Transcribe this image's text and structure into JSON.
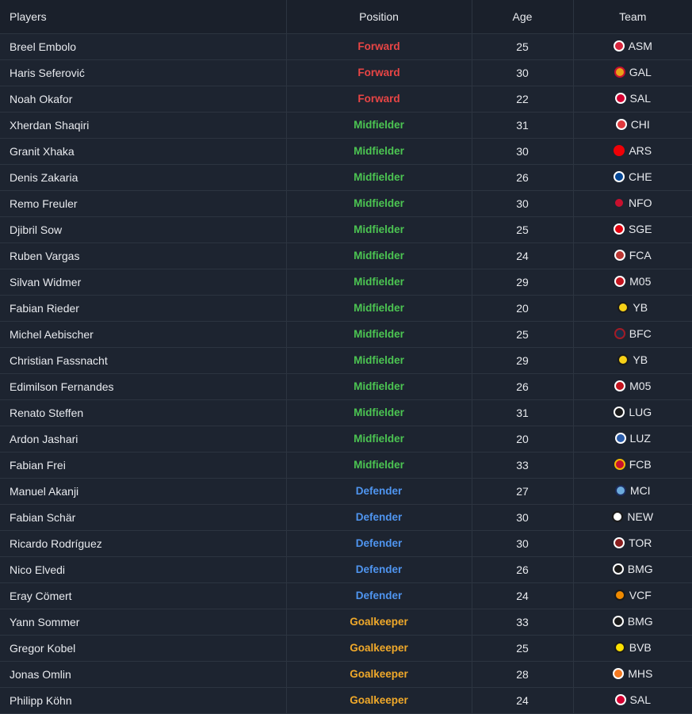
{
  "table": {
    "headers": {
      "players": "Players",
      "position": "Position",
      "age": "Age",
      "team": "Team"
    },
    "rows": [
      {
        "name": "Breel Embolo",
        "position": "Forward",
        "age": "25",
        "team": "ASM",
        "crest": {
          "icon": "asm-crest-icon",
          "primary": "#d7263d",
          "secondary": "#ffffff"
        }
      },
      {
        "name": "Haris Seferović",
        "position": "Forward",
        "age": "30",
        "team": "GAL",
        "crest": {
          "icon": "gal-crest-icon",
          "primary": "#e8a317",
          "secondary": "#c8102e"
        }
      },
      {
        "name": "Noah Okafor",
        "position": "Forward",
        "age": "22",
        "team": "SAL",
        "crest": {
          "icon": "sal-crest-icon",
          "primary": "#d50032",
          "secondary": "#ffffff"
        }
      },
      {
        "name": "Xherdan Shaqiri",
        "position": "Midfielder",
        "age": "31",
        "team": "CHI",
        "crest": {
          "icon": "chi-crest-icon",
          "primary": "#e03a3e",
          "secondary": "#ffffff"
        }
      },
      {
        "name": "Granit Xhaka",
        "position": "Midfielder",
        "age": "30",
        "team": "ARS",
        "crest": {
          "icon": "ars-crest-icon",
          "primary": "#ef0107",
          "secondary": "#ef0107"
        }
      },
      {
        "name": "Denis Zakaria",
        "position": "Midfielder",
        "age": "26",
        "team": "CHE",
        "crest": {
          "icon": "che-crest-icon",
          "primary": "#034694",
          "secondary": "#ffffff"
        }
      },
      {
        "name": "Remo Freuler",
        "position": "Midfielder",
        "age": "30",
        "team": "NFO",
        "crest": {
          "icon": "nfo-crest-icon",
          "primary": "#c8102e",
          "secondary": "#1d2430"
        }
      },
      {
        "name": "Djibril Sow",
        "position": "Midfielder",
        "age": "25",
        "team": "SGE",
        "crest": {
          "icon": "sge-crest-icon",
          "primary": "#e1000f",
          "secondary": "#ffffff"
        }
      },
      {
        "name": "Ruben Vargas",
        "position": "Midfielder",
        "age": "24",
        "team": "FCA",
        "crest": {
          "icon": "fca-crest-icon",
          "primary": "#ba3733",
          "secondary": "#ffffff"
        }
      },
      {
        "name": "Silvan Widmer",
        "position": "Midfielder",
        "age": "29",
        "team": "M05",
        "crest": {
          "icon": "m05-crest-icon",
          "primary": "#c3141e",
          "secondary": "#ffffff"
        }
      },
      {
        "name": "Fabian Rieder",
        "position": "Midfielder",
        "age": "20",
        "team": "YB",
        "crest": {
          "icon": "yb-crest-icon",
          "primary": "#f7d117",
          "secondary": "#1a1a1a"
        }
      },
      {
        "name": "Michel Aebischer",
        "position": "Midfielder",
        "age": "25",
        "team": "BFC",
        "crest": {
          "icon": "bfc-crest-icon",
          "primary": "#1a2f48",
          "secondary": "#a21c26"
        }
      },
      {
        "name": "Christian Fassnacht",
        "position": "Midfielder",
        "age": "29",
        "team": "YB",
        "crest": {
          "icon": "yb-crest-icon",
          "primary": "#f7d117",
          "secondary": "#1a1a1a"
        }
      },
      {
        "name": "Edimilson Fernandes",
        "position": "Midfielder",
        "age": "26",
        "team": "M05",
        "crest": {
          "icon": "m05-crest-icon",
          "primary": "#c3141e",
          "secondary": "#ffffff"
        }
      },
      {
        "name": "Renato Steffen",
        "position": "Midfielder",
        "age": "31",
        "team": "LUG",
        "crest": {
          "icon": "lug-crest-icon",
          "primary": "#1a1a1a",
          "secondary": "#ffffff"
        }
      },
      {
        "name": "Ardon Jashari",
        "position": "Midfielder",
        "age": "20",
        "team": "LUZ",
        "crest": {
          "icon": "luz-crest-icon",
          "primary": "#2a5caa",
          "secondary": "#ffffff"
        }
      },
      {
        "name": "Fabian Frei",
        "position": "Midfielder",
        "age": "33",
        "team": "FCB",
        "crest": {
          "icon": "fcb-crest-icon",
          "primary": "#c8102e",
          "secondary": "#f2b705"
        }
      },
      {
        "name": "Manuel Akanji",
        "position": "Defender",
        "age": "27",
        "team": "MCI",
        "crest": {
          "icon": "mci-crest-icon",
          "primary": "#6cabdd",
          "secondary": "#1c2c5b"
        }
      },
      {
        "name": "Fabian Schär",
        "position": "Defender",
        "age": "30",
        "team": "NEW",
        "crest": {
          "icon": "new-crest-icon",
          "primary": "#ffffff",
          "secondary": "#1a1a1a"
        }
      },
      {
        "name": "Ricardo Rodríguez",
        "position": "Defender",
        "age": "30",
        "team": "TOR",
        "crest": {
          "icon": "tor-crest-icon",
          "primary": "#8a1e1e",
          "secondary": "#ffffff"
        }
      },
      {
        "name": "Nico Elvedi",
        "position": "Defender",
        "age": "26",
        "team": "BMG",
        "crest": {
          "icon": "bmg-crest-icon",
          "primary": "#1a1a1a",
          "secondary": "#ffffff"
        }
      },
      {
        "name": "Eray Cömert",
        "position": "Defender",
        "age": "24",
        "team": "VCF",
        "crest": {
          "icon": "vcf-crest-icon",
          "primary": "#f08a00",
          "secondary": "#1a1a1a"
        }
      },
      {
        "name": "Yann Sommer",
        "position": "Goalkeeper",
        "age": "33",
        "team": "BMG",
        "crest": {
          "icon": "bmg-crest-icon",
          "primary": "#1a1a1a",
          "secondary": "#ffffff"
        }
      },
      {
        "name": "Gregor Kobel",
        "position": "Goalkeeper",
        "age": "25",
        "team": "BVB",
        "crest": {
          "icon": "bvb-crest-icon",
          "primary": "#fde100",
          "secondary": "#1a1a1a"
        }
      },
      {
        "name": "Jonas Omlin",
        "position": "Goalkeeper",
        "age": "28",
        "team": "MHS",
        "crest": {
          "icon": "mhs-crest-icon",
          "primary": "#f47920",
          "secondary": "#ffffff"
        }
      },
      {
        "name": "Philipp Köhn",
        "position": "Goalkeeper",
        "age": "24",
        "team": "SAL",
        "crest": {
          "icon": "sal-crest-icon",
          "primary": "#d50032",
          "secondary": "#ffffff"
        }
      }
    ]
  },
  "colors": {
    "Forward": "#e84545",
    "Midfielder": "#4cc552",
    "Defender": "#4f95f0",
    "Goalkeeper": "#f0a92a"
  }
}
